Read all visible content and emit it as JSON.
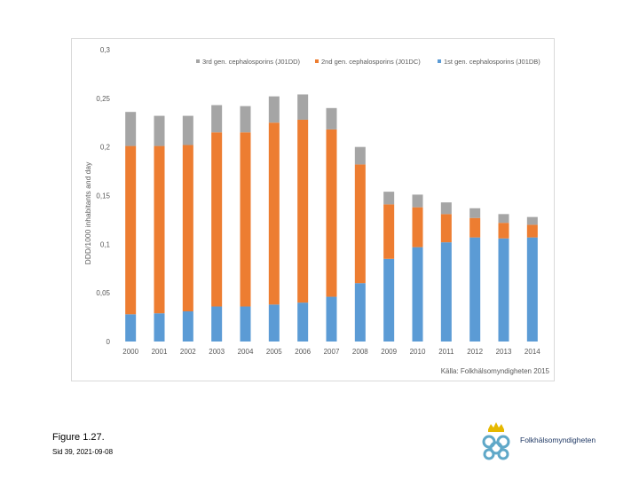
{
  "chart_data": {
    "type": "stacked-bar",
    "categories": [
      "2000",
      "2001",
      "2002",
      "2003",
      "2004",
      "2005",
      "2006",
      "2007",
      "2008",
      "2009",
      "2010",
      "2011",
      "2012",
      "2013",
      "2014"
    ],
    "series": [
      {
        "name": "1st gen. cephalosporins (J01DB)",
        "color": "#5b9bd5",
        "values": [
          0.028,
          0.029,
          0.031,
          0.036,
          0.036,
          0.038,
          0.04,
          0.046,
          0.06,
          0.085,
          0.097,
          0.102,
          0.107,
          0.106,
          0.107
        ]
      },
      {
        "name": "2nd gen. cephalosporins (J01DC)",
        "color": "#ed7d31",
        "values": [
          0.173,
          0.172,
          0.171,
          0.179,
          0.179,
          0.187,
          0.188,
          0.172,
          0.122,
          0.056,
          0.041,
          0.029,
          0.02,
          0.016,
          0.013
        ]
      },
      {
        "name": "3rd gen. cephalosporins (J01DD)",
        "color": "#a5a5a5",
        "values": [
          0.035,
          0.031,
          0.03,
          0.028,
          0.027,
          0.027,
          0.026,
          0.022,
          0.018,
          0.013,
          0.013,
          0.012,
          0.01,
          0.009,
          0.008
        ]
      }
    ],
    "ylabel": "DDD/1000 inhabitants and day",
    "ylim": [
      0,
      0.3
    ],
    "yticks": [
      0,
      0.05,
      0.1,
      0.15,
      0.2,
      0.25,
      0.3
    ],
    "ytick_labels": [
      "0",
      "0,05",
      "0,1",
      "0,15",
      "0,2",
      "0,25",
      "0,3"
    ],
    "legend_order": [
      "3rd gen. cephalosporins (J01DD)",
      "2nd gen. cephalosporins (J01DC)",
      "1st gen. cephalosporins (J01DB)"
    ],
    "legend_position": "top-right",
    "source": "Källa: Folkhälsomyndigheten 2015",
    "grid": false
  },
  "caption": {
    "figure": "Figure 1.27.",
    "slide": "Sid 39, 2021-09-08"
  },
  "logo": {
    "text": "Folkhälsomyndigheten"
  },
  "colors": {
    "blue": "#5b9bd5",
    "orange": "#ed7d31",
    "grey": "#a5a5a5"
  }
}
